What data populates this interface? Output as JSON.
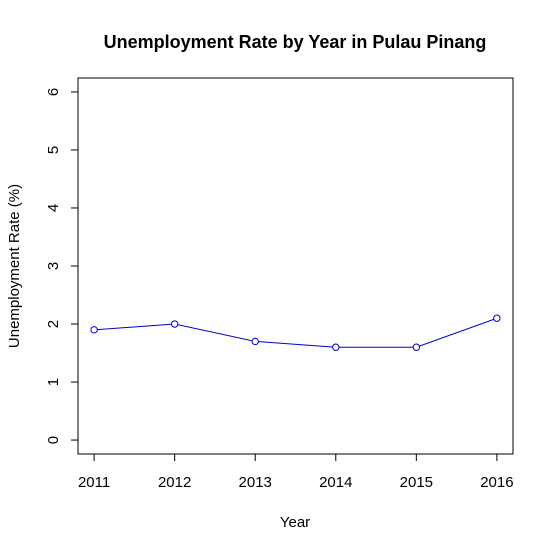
{
  "chart_data": {
    "type": "line",
    "title": "Unemployment Rate by Year in Pulau Pinang",
    "xlabel": "Year",
    "ylabel": "Unemployment Rate (%)",
    "x": [
      2011,
      2012,
      2013,
      2014,
      2015,
      2016
    ],
    "series": [
      {
        "values": [
          1.9,
          2.0,
          1.7,
          1.6,
          1.6,
          2.1
        ],
        "color": "#0000cd"
      }
    ],
    "xticks": [
      "2011",
      "2012",
      "2013",
      "2014",
      "2015",
      "2016"
    ],
    "yticks": [
      "0",
      "1",
      "2",
      "3",
      "4",
      "5",
      "6"
    ],
    "xlim": [
      2010.8,
      2016.2
    ],
    "ylim": [
      -0.24,
      6.24
    ],
    "grid": false,
    "markers": "open-circle"
  }
}
